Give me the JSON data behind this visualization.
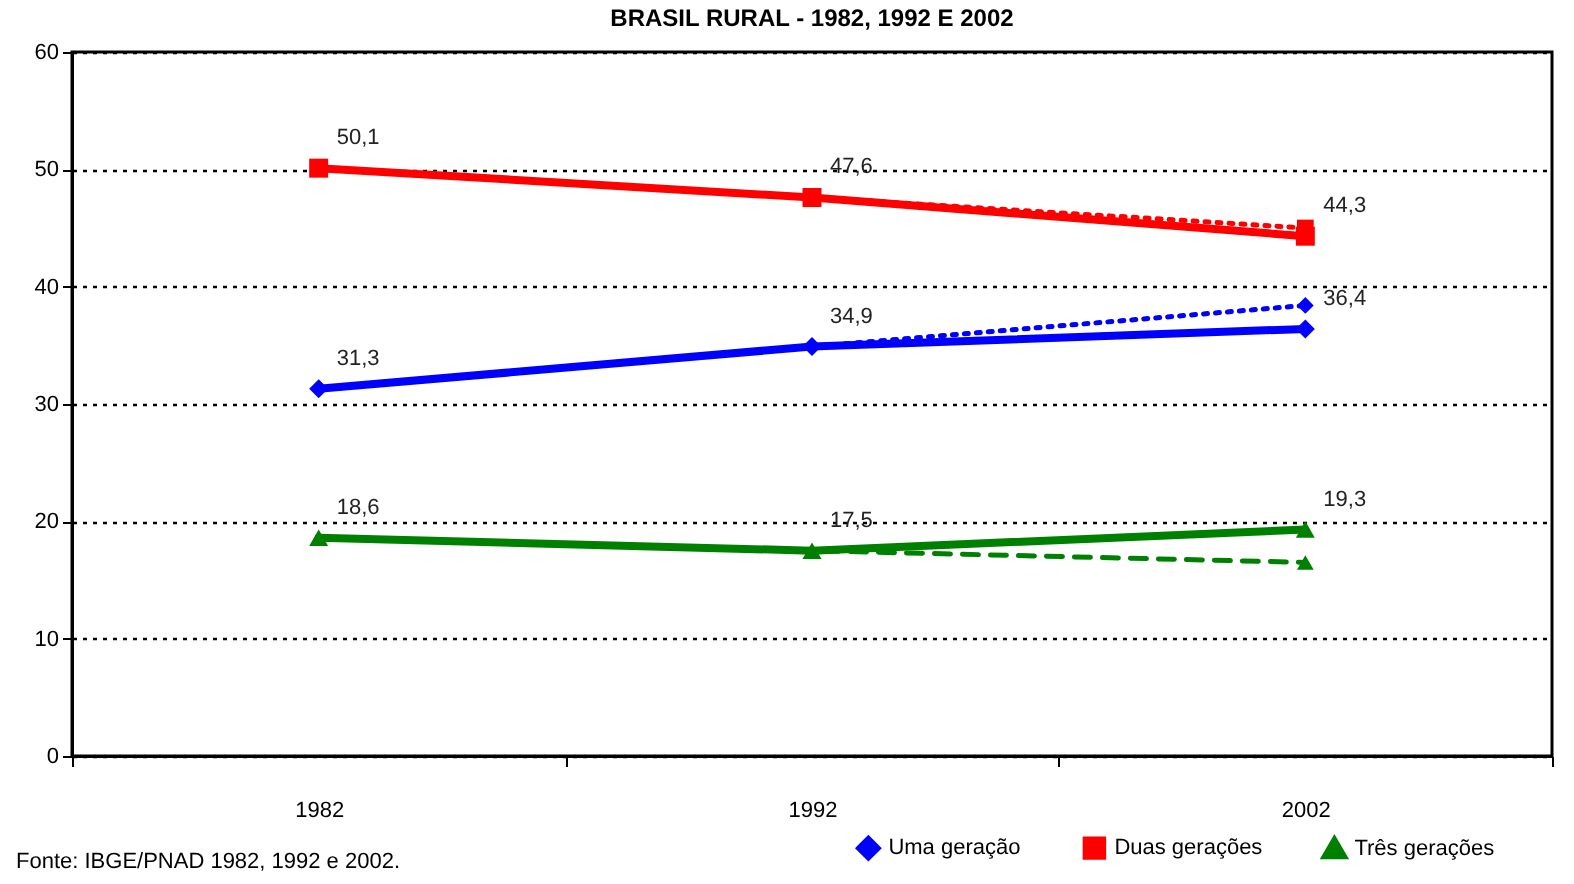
{
  "chart_data": {
    "type": "line",
    "title": "BRASIL RURAL - 1982, 1992 E 2002",
    "categories": [
      "1982",
      "1992",
      "2002"
    ],
    "series": [
      {
        "name": "Uma geração",
        "color": "#0000ff",
        "values": [
          31.3,
          34.9,
          36.4
        ],
        "marker": "diamond",
        "line_style": "solid",
        "value_labels": [
          "31,3",
          "34,9",
          "36,4"
        ]
      },
      {
        "name": "Duas gerações",
        "color": "#ff0000",
        "values": [
          50.1,
          47.6,
          44.3
        ],
        "marker": "square",
        "line_style": "solid",
        "value_labels": [
          "50,1",
          "47,6",
          "44,3"
        ]
      },
      {
        "name": "Três gerações",
        "color": "#008000",
        "values": [
          18.6,
          17.5,
          19.3
        ],
        "marker": "triangle",
        "line_style": "solid",
        "value_labels": [
          "18,6",
          "17,5",
          "19,3"
        ]
      },
      {
        "color": "#0000ff",
        "values": [
          31.3,
          34.9,
          38.4
        ],
        "marker": "diamond",
        "line_style": "dotted"
      },
      {
        "color": "#ff0000",
        "values": [
          50.1,
          47.6,
          45.0
        ],
        "marker": "square",
        "line_style": "dotted"
      },
      {
        "color": "#008000",
        "values": [
          18.6,
          17.5,
          16.5
        ],
        "marker": "triangle",
        "line_style": "dashed"
      }
    ],
    "ylim": [
      0,
      60
    ],
    "yticks": [
      0,
      10,
      20,
      30,
      40,
      50,
      60
    ],
    "grid": "y",
    "legend": "bottom right",
    "annotations": [
      "Fonte: IBGE/PNAD 1982, 1992 e 2002."
    ]
  }
}
